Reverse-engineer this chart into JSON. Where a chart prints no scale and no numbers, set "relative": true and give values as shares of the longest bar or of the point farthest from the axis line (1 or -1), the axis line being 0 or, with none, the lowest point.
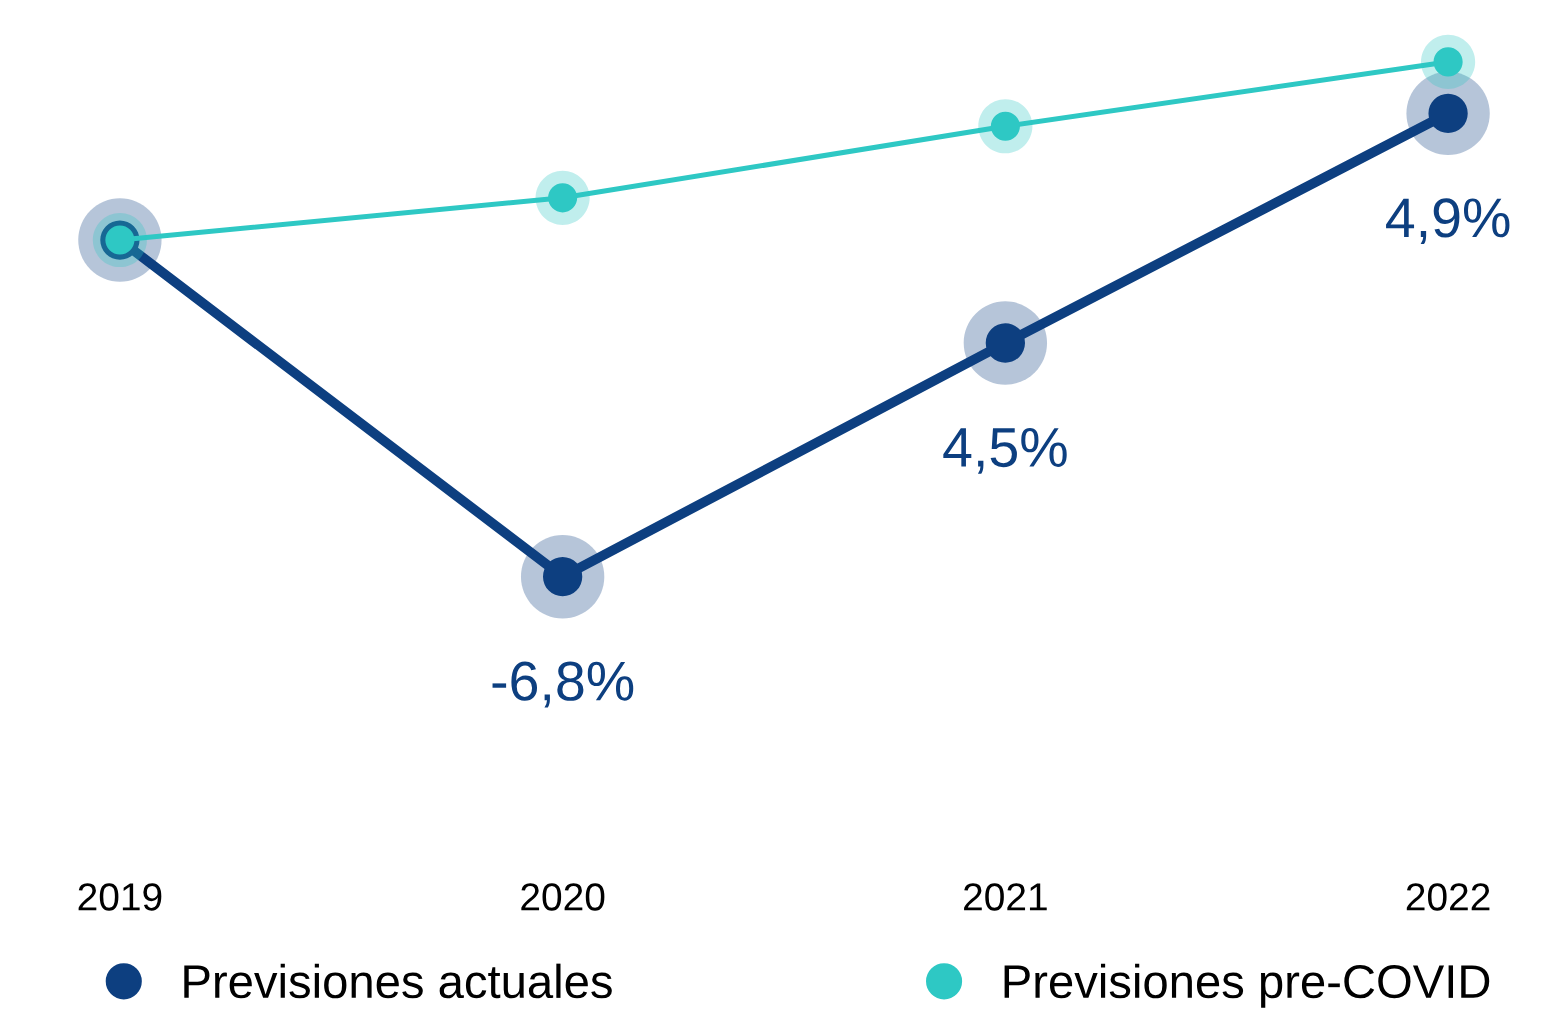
{
  "chart_data": {
    "type": "line",
    "relative": true,
    "categories": [
      "2019",
      "2020",
      "2021",
      "2022"
    ],
    "series": [
      {
        "name": "Previsiones actuales",
        "color": "#0d3f80",
        "values": [
          0.654,
          0,
          0.454,
          0.9
        ]
      },
      {
        "name": "Previsiones pre-COVID",
        "color": "#2ec8c4",
        "values": [
          0.654,
          0.736,
          0.875,
          1
        ]
      }
    ],
    "annotations": [
      {
        "text": "-6,8%",
        "x": "2020",
        "y": 0
      },
      {
        "text": "4,5%",
        "x": "2021",
        "y": 0.454
      },
      {
        "text": "4,9%",
        "x": "2022",
        "y": 0.9
      }
    ],
    "marker": "circle",
    "line_style": "solid",
    "grid": false,
    "legend": "bottom"
  }
}
